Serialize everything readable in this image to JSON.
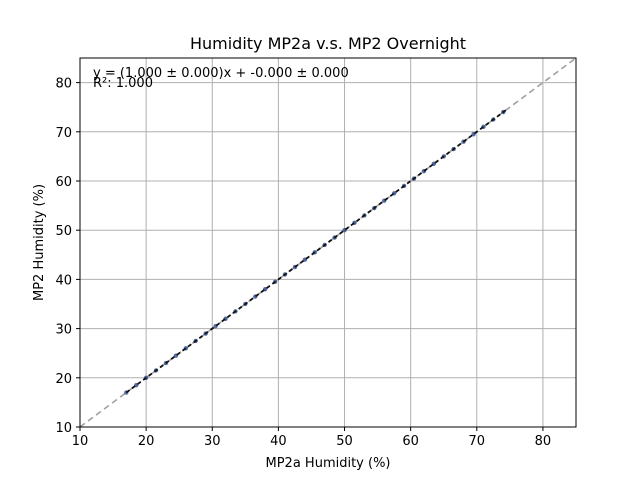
{
  "chart_data": {
    "type": "scatter",
    "title": "Humidity MP2a v.s. MP2 Overnight",
    "xlabel": "MP2a Humidity (%)",
    "ylabel": "MP2 Humidity (%)",
    "xlim": [
      10,
      85
    ],
    "ylim": [
      10,
      85
    ],
    "xticks": [
      10,
      20,
      30,
      40,
      50,
      60,
      70,
      80
    ],
    "yticks": [
      10,
      20,
      30,
      40,
      50,
      60,
      70,
      80
    ],
    "grid": true,
    "annotations": {
      "equation": "y = (1.000 ± 0.000)x + -0.000 ± 0.000",
      "r2": "R²: 1.000"
    },
    "identity_line": {
      "style": "dashed",
      "color": "#a0a0a0",
      "from": [
        10,
        10
      ],
      "to": [
        85,
        85
      ]
    },
    "series": [
      {
        "color": "#2a4a8c",
        "x": [
          17,
          18.5,
          20,
          21.5,
          23,
          24.5,
          26,
          27.5,
          29,
          30.5,
          32,
          33.5,
          35,
          36.5,
          38,
          39.5,
          41,
          42.5,
          44,
          45.5,
          47,
          48.5,
          50,
          51.5,
          53,
          54.5,
          56,
          57.5,
          59,
          60.5,
          62,
          63.5,
          65,
          66.5,
          68,
          69.5,
          71,
          72.5,
          74
        ],
        "y": [
          17,
          18.5,
          20,
          21.5,
          23,
          24.5,
          26,
          27.5,
          29,
          30.5,
          32,
          33.5,
          35,
          36.5,
          38,
          39.5,
          41,
          42.5,
          44,
          45.5,
          47,
          48.5,
          50,
          51.5,
          53,
          54.5,
          56,
          57.5,
          59,
          60.5,
          62,
          63.5,
          65,
          66.5,
          68,
          69.5,
          71,
          72.5,
          74
        ]
      }
    ],
    "fit_line": {
      "color": "#111111",
      "from": [
        17,
        17
      ],
      "to": [
        74.5,
        74.5
      ]
    }
  }
}
